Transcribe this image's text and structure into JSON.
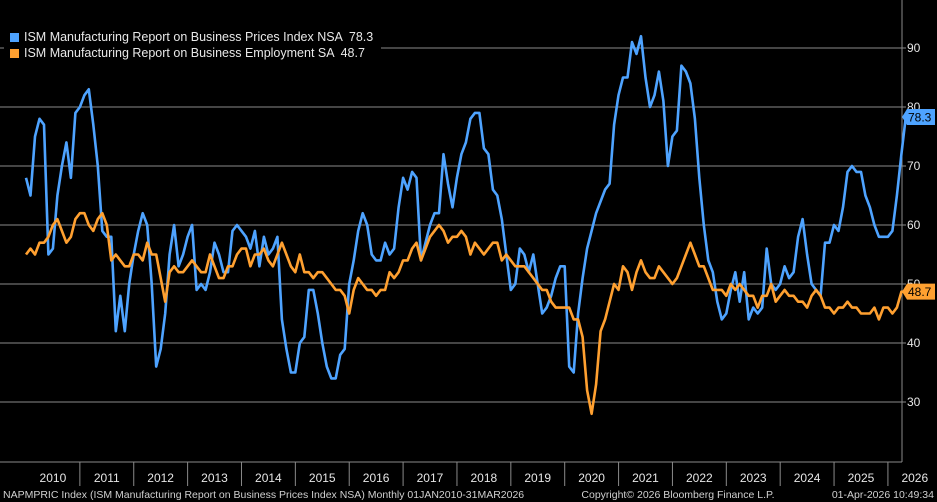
{
  "chart_data": {
    "type": "line",
    "ylim": [
      20,
      100
    ],
    "xlim": [
      2010.0,
      2026.3
    ],
    "yticks": [
      30,
      40,
      50,
      60,
      70,
      80,
      90
    ],
    "year_labels": [
      "2010",
      "2011",
      "2012",
      "2013",
      "2014",
      "2015",
      "2016",
      "2017",
      "2018",
      "2019",
      "2020",
      "2021",
      "2022",
      "2023",
      "2024",
      "2025",
      "2026"
    ],
    "series": [
      {
        "name": "ISM Manufacturing Report on Business Prices Index NSA",
        "last_value_label": "78.3",
        "last_value": 78.3,
        "color": "#4ea3ff",
        "start": 2010.0,
        "step": 0.08333,
        "values": [
          68,
          65,
          75,
          78,
          77,
          55,
          56,
          65,
          70,
          74,
          68,
          79,
          80,
          82,
          83,
          77,
          70,
          59,
          58,
          58,
          42,
          48,
          42,
          50,
          55,
          59,
          62,
          60,
          50,
          36,
          39,
          45,
          55,
          60,
          53,
          55,
          58,
          60,
          49,
          50,
          49,
          52,
          57,
          55,
          52,
          52,
          59,
          60,
          59,
          58,
          56,
          59,
          53,
          58,
          55,
          56,
          58,
          44,
          39,
          35,
          35,
          40,
          41,
          49,
          49,
          45,
          40,
          36,
          34,
          34,
          38,
          39,
          50,
          54,
          59,
          62,
          60,
          55,
          54,
          54,
          57,
          55,
          56,
          63,
          68,
          66,
          69,
          68,
          54,
          57,
          60,
          62,
          62,
          72,
          67,
          63,
          68,
          72,
          74,
          78,
          79,
          79,
          73,
          72,
          66,
          65,
          61,
          55,
          49,
          50,
          56,
          55,
          52,
          55,
          50,
          45,
          46,
          48,
          51,
          53,
          53,
          36,
          35,
          45,
          51,
          56,
          59,
          62,
          64,
          66,
          67,
          77,
          82,
          85,
          85,
          91,
          89,
          92,
          85,
          80,
          82,
          86,
          81,
          70,
          75,
          76,
          87,
          86,
          84,
          78,
          68,
          60,
          54,
          52,
          47,
          44,
          45,
          49,
          52,
          47,
          52,
          44,
          46,
          45,
          46,
          56,
          50,
          49,
          50,
          53,
          51,
          52,
          58,
          61,
          55,
          50,
          49,
          48,
          57,
          57,
          60,
          59,
          63,
          69,
          70,
          69,
          69,
          65,
          63,
          60,
          58,
          58,
          58,
          59,
          65,
          72,
          78.3
        ]
      },
      {
        "name": "ISM Manufacturing Report on Business Employment SA",
        "last_value_label": "48.7",
        "last_value": 48.7,
        "color": "#ffa030",
        "start": 2010.0,
        "step": 0.08333,
        "values": [
          55,
          56,
          55,
          57,
          57,
          58,
          60,
          61,
          59,
          57,
          58,
          61,
          62,
          62,
          60,
          59,
          61,
          62,
          60,
          54,
          55,
          54,
          53,
          53,
          55,
          55,
          54,
          57,
          55,
          55,
          51,
          47,
          52,
          53,
          52,
          52,
          53,
          54,
          53,
          52,
          52,
          55,
          53,
          51,
          51,
          53,
          53,
          55,
          56,
          56,
          53,
          55,
          55,
          56,
          54,
          53,
          55,
          57,
          55,
          53,
          52,
          55,
          52,
          52,
          51,
          52,
          52,
          51,
          50,
          49,
          49,
          48,
          45,
          49,
          51,
          50,
          49,
          49,
          48,
          49,
          49,
          52,
          51,
          52,
          54,
          54,
          56,
          57,
          54,
          56,
          58,
          59,
          60,
          59,
          57,
          58,
          58,
          59,
          58,
          55,
          57,
          56,
          55,
          56,
          57,
          57,
          54,
          55,
          54,
          53,
          53,
          53,
          52,
          51,
          50,
          49,
          49,
          47,
          46,
          46,
          46,
          46,
          44,
          44,
          41,
          32,
          28,
          33,
          42,
          44,
          47,
          50,
          49,
          53,
          52,
          49,
          52,
          54,
          52,
          51,
          51,
          53,
          52,
          51,
          50,
          51,
          53,
          55,
          57,
          55,
          53,
          53,
          51,
          49,
          49,
          49,
          48,
          50,
          49,
          50,
          49,
          48,
          48,
          46,
          48,
          48,
          50,
          47,
          48,
          49,
          48,
          48,
          47,
          47,
          46,
          48,
          49,
          48,
          46,
          46,
          45,
          46,
          46,
          47,
          46,
          46,
          45,
          45,
          45,
          46,
          44,
          46,
          46,
          45,
          46,
          48.7,
          48.7
        ]
      }
    ]
  },
  "legend": {
    "items": [
      {
        "label": "ISM Manufacturing Report on Business Prices Index NSA",
        "value": "78.3",
        "color": "#4ea3ff"
      },
      {
        "label": "ISM Manufacturing Report on Business Employment SA",
        "value": "48.7",
        "color": "#ffa030"
      }
    ]
  },
  "footer": {
    "left": "NAPMPRIC Index (ISM Manufacturing Report on Business Prices Index NSA) Monthly 01JAN2010-31MAR2026",
    "center": "Copyright© 2026 Bloomberg Finance L.P.",
    "right": "01-Apr-2026 10:49:34"
  }
}
